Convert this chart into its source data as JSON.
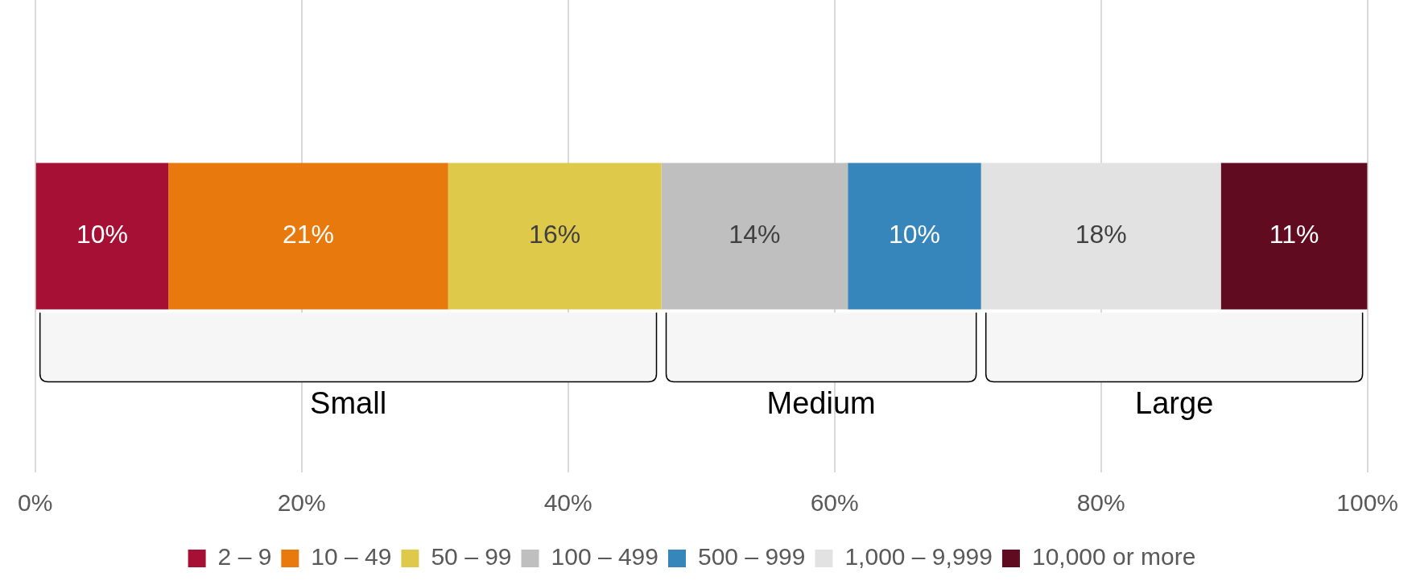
{
  "chart_data": {
    "type": "bar",
    "orientation": "horizontal",
    "stacked": true,
    "categories": [
      null
    ],
    "series": [
      {
        "name": "2 – 9",
        "color": "#a51034",
        "values": [
          10
        ],
        "value_labels": [
          "10%"
        ]
      },
      {
        "name": "10 – 49",
        "color": "#e8790d",
        "values": [
          21
        ],
        "value_labels": [
          "21%"
        ]
      },
      {
        "name": "50 – 99",
        "color": "#dfc94a",
        "values": [
          16
        ],
        "value_labels": [
          "16%"
        ]
      },
      {
        "name": "100 – 499",
        "color": "#bfbfbf",
        "values": [
          14
        ],
        "value_labels": [
          "14%"
        ]
      },
      {
        "name": "500 – 999",
        "color": "#3686bb",
        "values": [
          10
        ],
        "value_labels": [
          "10%"
        ]
      },
      {
        "name": "1,000 – 9,999",
        "color": "#e2e2e2",
        "values": [
          18
        ],
        "value_labels": [
          "18%"
        ]
      },
      {
        "name": "10,000 or more",
        "color": "#600b20",
        "values": [
          11
        ],
        "value_labels": [
          "11%"
        ]
      }
    ],
    "xlim": [
      0,
      100
    ],
    "xticks": [
      {
        "value": 0,
        "label": "0%"
      },
      {
        "value": 20,
        "label": "20%"
      },
      {
        "value": 40,
        "label": "40%"
      },
      {
        "value": 60,
        "label": "60%"
      },
      {
        "value": 80,
        "label": "80%"
      },
      {
        "value": 100,
        "label": "100%"
      }
    ],
    "bands": [
      {
        "axis": "x",
        "from": 0,
        "to": 47,
        "label": "Small"
      },
      {
        "axis": "x",
        "from": 47,
        "to": 71,
        "label": "Medium"
      },
      {
        "axis": "x",
        "from": 71,
        "to": 100,
        "label": "Large"
      }
    ],
    "grid": "x",
    "legend": "bottom"
  }
}
